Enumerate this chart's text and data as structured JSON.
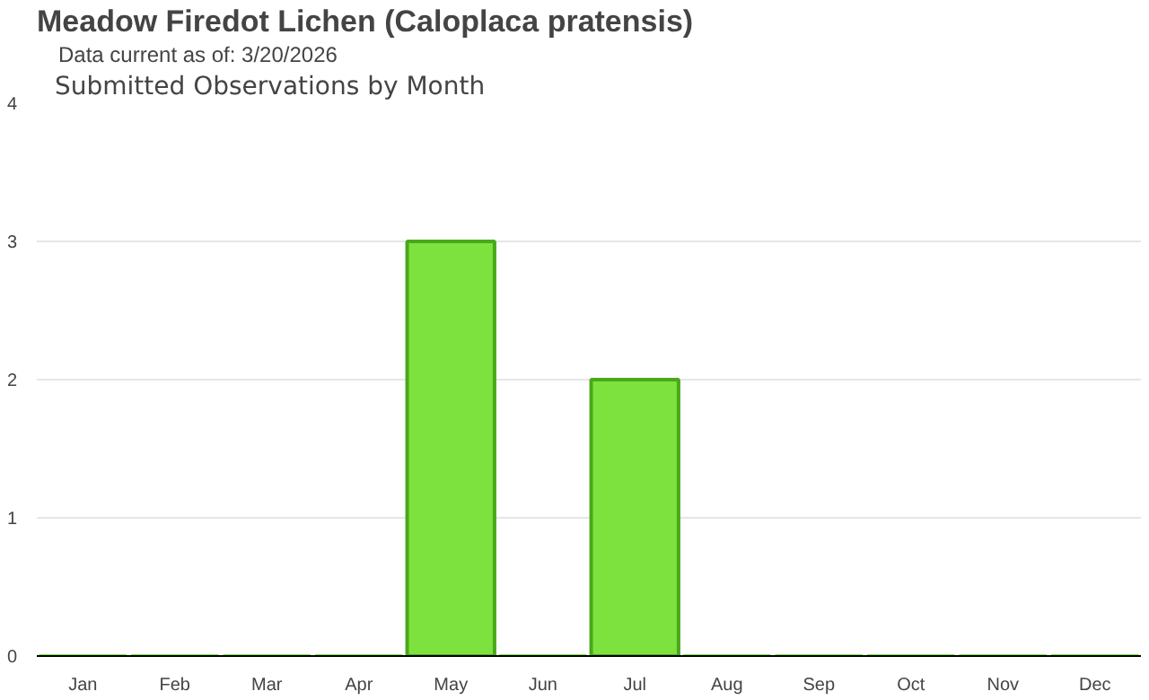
{
  "chart_data": {
    "type": "bar",
    "title": "Meadow Firedot Lichen   (Caloplaca pratensis)",
    "subtitle": "Data current as of: 3/20/2026",
    "annotations": [
      "Submitted Observations by Month"
    ],
    "categories": [
      "Jan",
      "Feb",
      "Mar",
      "Apr",
      "May",
      "Jun",
      "Jul",
      "Aug",
      "Sep",
      "Oct",
      "Nov",
      "Dec"
    ],
    "values": [
      0,
      0,
      0,
      0,
      3,
      0,
      2,
      0,
      0,
      0,
      0,
      0
    ],
    "color": "#7ee23e",
    "ylim": [
      0,
      4
    ],
    "yticks": [
      0,
      1,
      2,
      3,
      4
    ],
    "grid": "y"
  }
}
